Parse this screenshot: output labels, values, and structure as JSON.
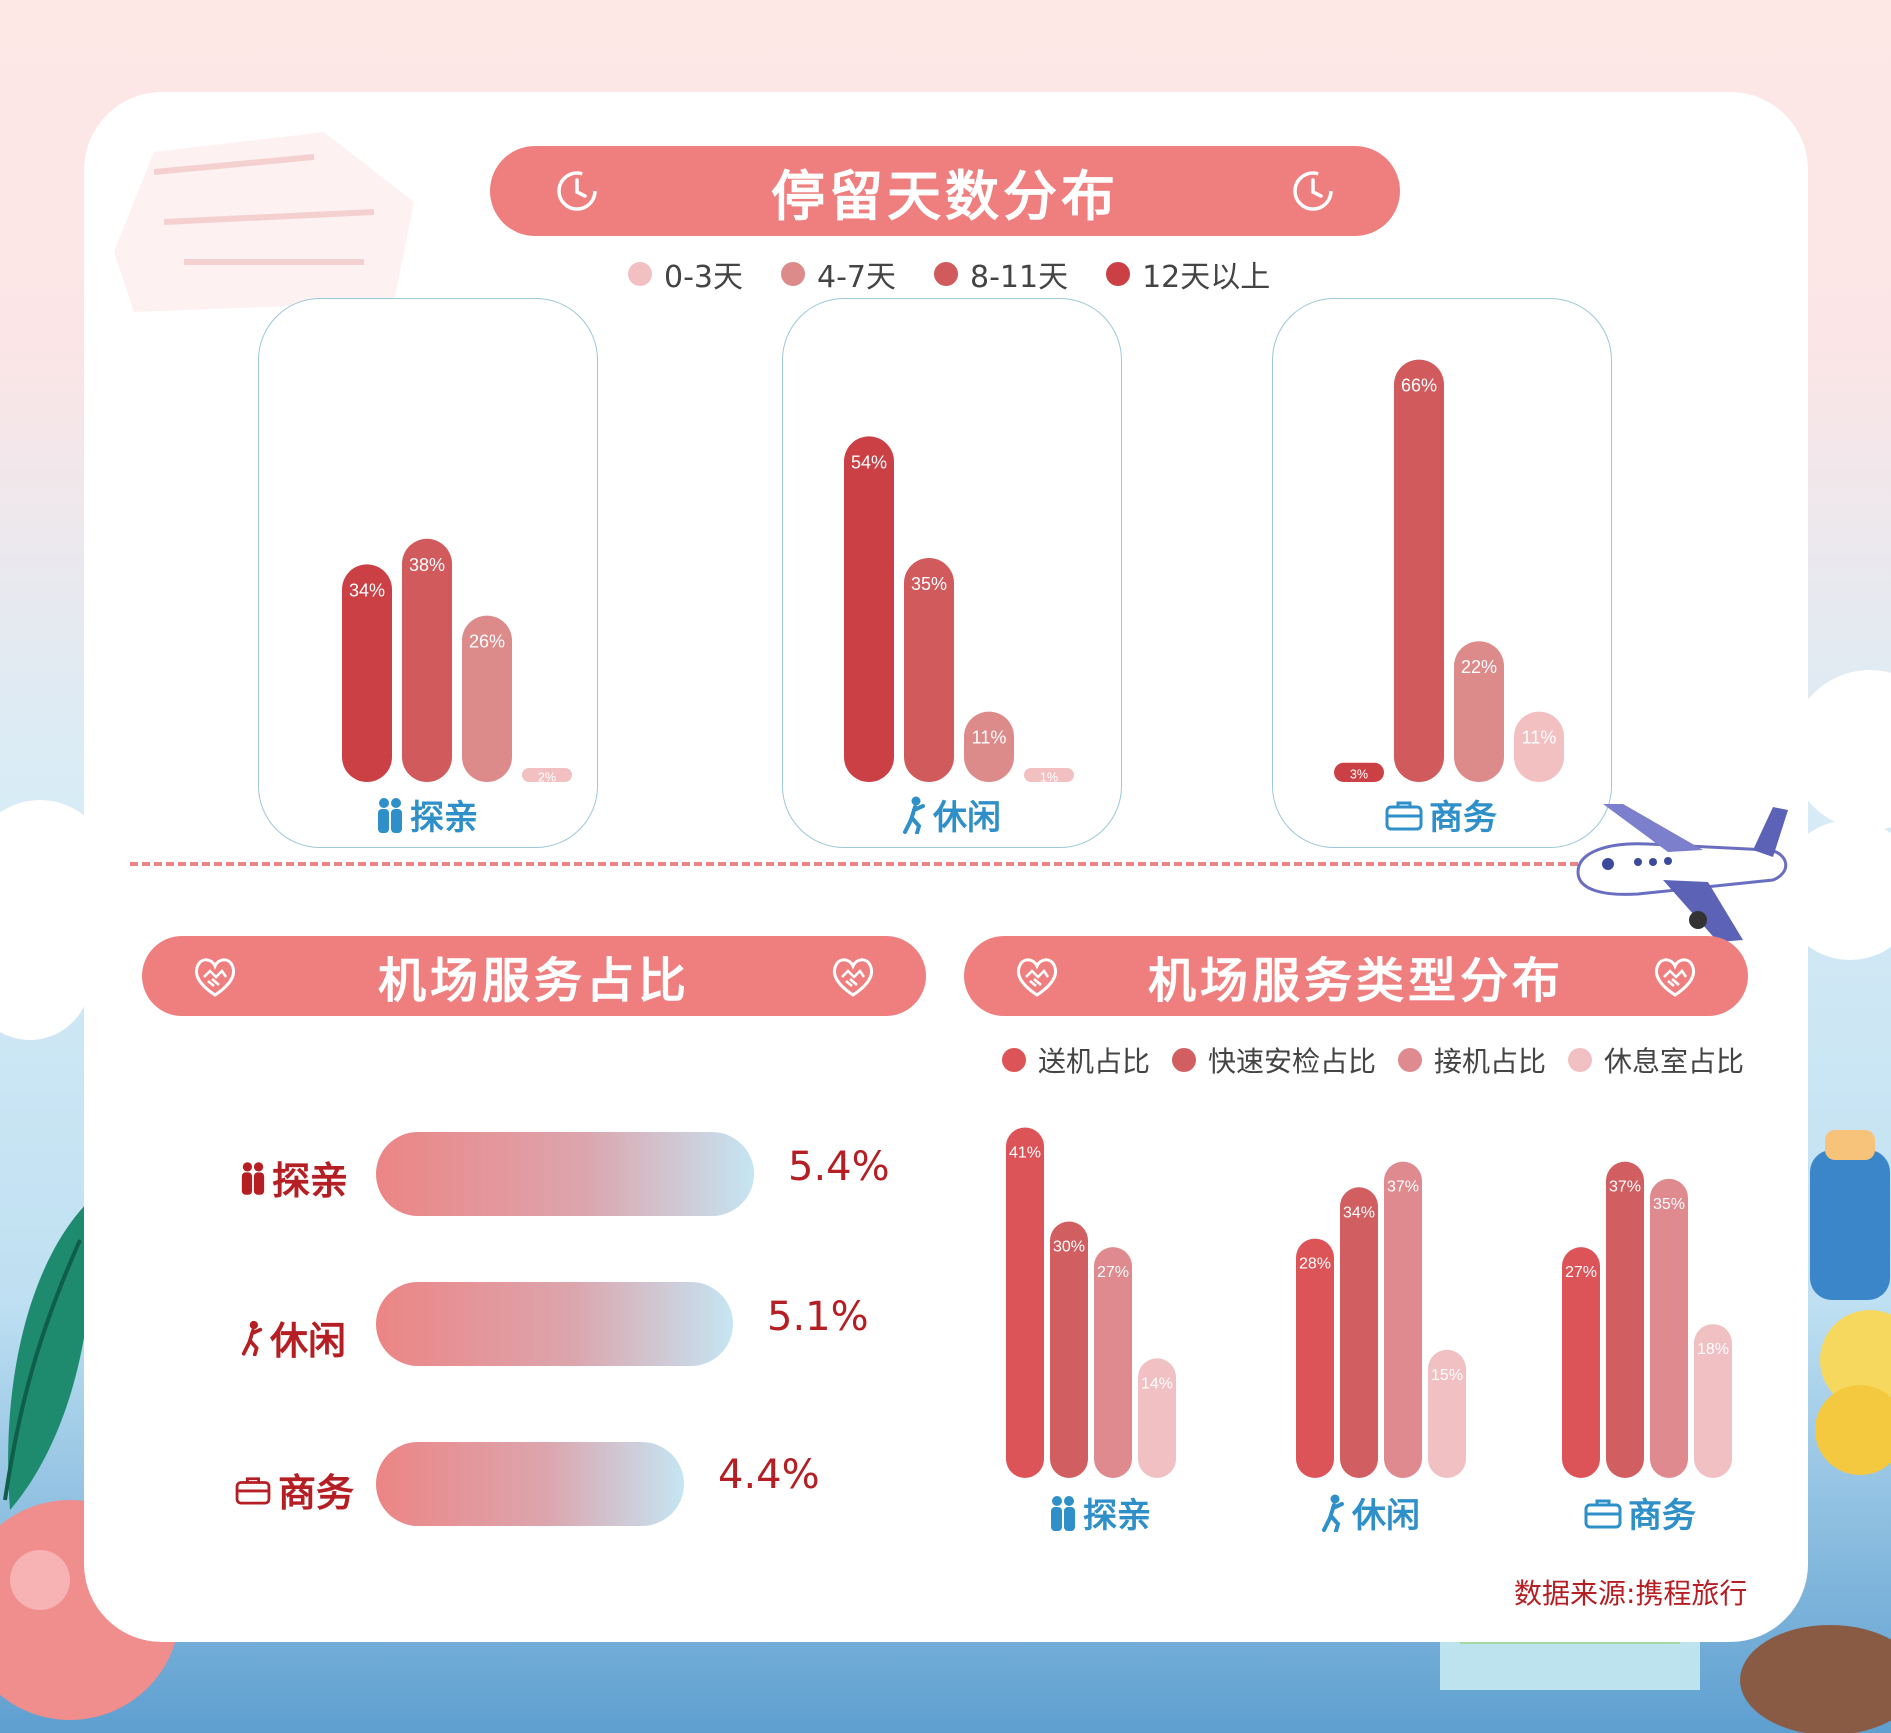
{
  "colors": {
    "d0_3": "#f3c0c2",
    "d4_7": "#dc8a8a",
    "d8_11": "#d05a5c",
    "d12": "#cb4045",
    "send": "#dd5458",
    "fast": "#d15f61",
    "pickup": "#de8a8e",
    "lounge": "#f0c0c3",
    "banner": "#ef7f7f",
    "category_blue": "#2f8fc9",
    "category_red": "#b51f24"
  },
  "stay": {
    "title": "停留天数分布",
    "legend": [
      "0-3天",
      "4-7天",
      "8-11天",
      "12天以上"
    ]
  },
  "service_share": {
    "title": "机场服务占比"
  },
  "service_type": {
    "title": "机场服务类型分布",
    "legend": [
      "送机占比",
      "快速安检占比",
      "接机占比",
      "休息室占比"
    ]
  },
  "categories": [
    "探亲",
    "休闲",
    "商务"
  ],
  "icons": [
    "family-icon",
    "leisure-icon",
    "briefcase-icon",
    "clock-icon",
    "handshake-icon",
    "airplane-icon"
  ],
  "source": "数据来源:携程旅行",
  "chart_data": [
    {
      "type": "bar",
      "title": "停留天数分布",
      "categories": [
        "探亲",
        "休闲",
        "商务"
      ],
      "series": [
        {
          "name": "12天以上",
          "values": [
            34,
            54,
            3
          ],
          "labels": [
            "34%",
            "54%",
            "3%"
          ]
        },
        {
          "name": "8-11天",
          "values": [
            38,
            35,
            66
          ],
          "labels": [
            "38%",
            "35%",
            "66%"
          ]
        },
        {
          "name": "4-7天",
          "values": [
            26,
            11,
            22
          ],
          "labels": [
            "26%",
            "11%",
            "22%"
          ]
        },
        {
          "name": "0-3天",
          "values": [
            2,
            1,
            11
          ],
          "labels": [
            "2%",
            "1%",
            "11%"
          ]
        }
      ]
    },
    {
      "type": "bar",
      "orientation": "horizontal",
      "title": "机场服务占比",
      "categories": [
        "探亲",
        "休闲",
        "商务"
      ],
      "values": [
        5.4,
        5.1,
        4.4
      ],
      "labels": [
        "5.4%",
        "5.1%",
        "4.4%"
      ]
    },
    {
      "type": "bar",
      "title": "机场服务类型分布",
      "categories": [
        "探亲",
        "休闲",
        "商务"
      ],
      "series": [
        {
          "name": "送机占比",
          "values": [
            41,
            28,
            27
          ],
          "labels": [
            "41%",
            "28%",
            "27%"
          ]
        },
        {
          "name": "快速安检占比",
          "values": [
            30,
            34,
            37
          ],
          "labels": [
            "30%",
            "34%",
            "37%"
          ]
        },
        {
          "name": "接机占比",
          "values": [
            27,
            37,
            35
          ],
          "labels": [
            "27%",
            "37%",
            "35%"
          ]
        },
        {
          "name": "休息室占比",
          "values": [
            14,
            15,
            18
          ],
          "labels": [
            "14%",
            "15%",
            "18%"
          ]
        }
      ]
    }
  ]
}
